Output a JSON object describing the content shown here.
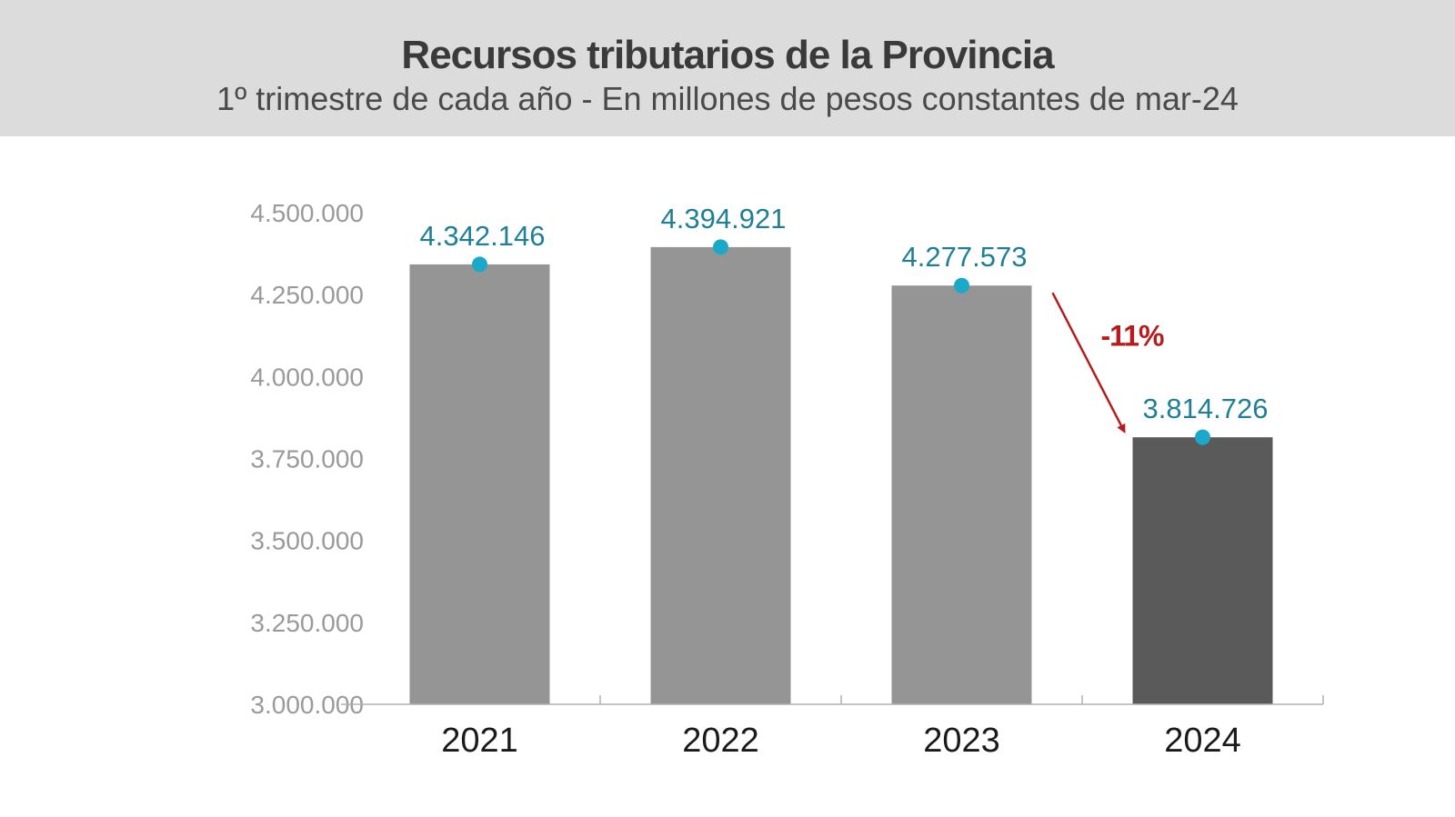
{
  "header": {
    "title": "Recursos tributarios de la Provincia",
    "subtitle": "1º trimestre de cada año - En millones de pesos constantes de mar-24"
  },
  "chart_data": {
    "type": "bar",
    "title": "Recursos tributarios de la Provincia",
    "subtitle": "1º trimestre de cada año - En millones de pesos constantes de mar-24",
    "categories": [
      "2021",
      "2022",
      "2023",
      "2024"
    ],
    "values": [
      4342146,
      4394921,
      4277573,
      3814726
    ],
    "value_labels": [
      "4.342.146",
      "4.394.921",
      "4.277.573",
      "3.814.726"
    ],
    "ylim": [
      3000000,
      4500000
    ],
    "yticks": [
      3000000,
      3250000,
      3500000,
      3750000,
      4000000,
      4250000,
      4500000
    ],
    "ytick_labels": [
      "3.000.000",
      "3.250.000",
      "3.500.000",
      "3.750.000",
      "4.000.000",
      "4.250.000",
      "4.500.000"
    ],
    "grid": false,
    "annotation": {
      "text": "-11%",
      "from": "2023",
      "to": "2024"
    },
    "colors": {
      "bar": "#959595",
      "highlight_bar": "#5a5a5a",
      "highlight_category": "2024",
      "marker": "#1aa9c8",
      "label": "#1f7f96",
      "arrow": "#b71c1c",
      "axis": "#b0b0b0",
      "header_bg": "#dcdcdc"
    }
  }
}
